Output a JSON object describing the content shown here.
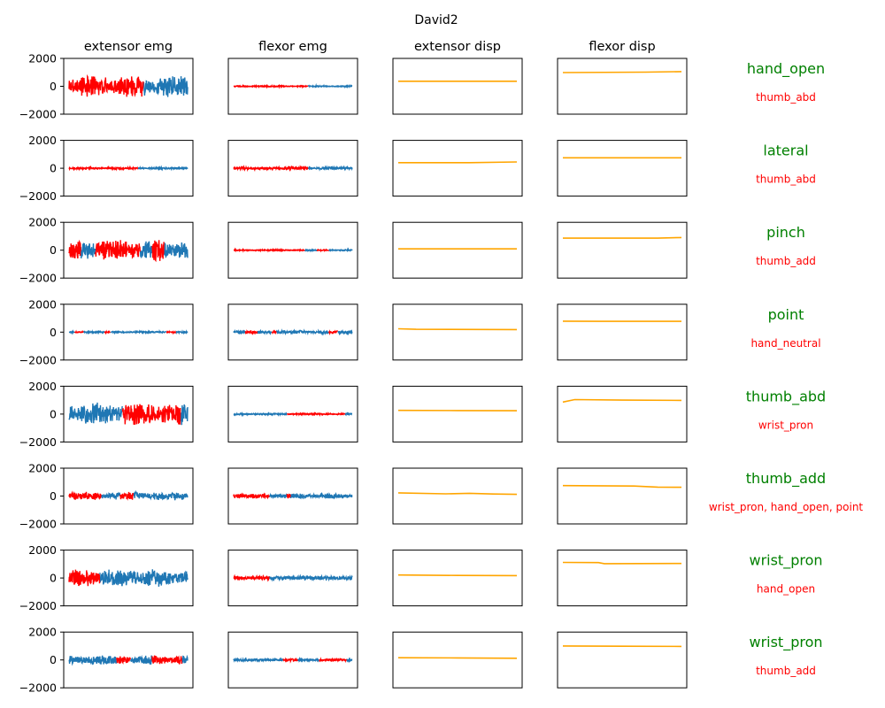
{
  "chart_data": {
    "type": "line",
    "title": "David2",
    "columns": [
      "extensor emg",
      "flexor emg",
      "extensor disp",
      "flexor disp"
    ],
    "emg_ylim": [
      -2000,
      2000
    ],
    "emg_yticks": [
      "2000",
      "0",
      "−2000"
    ],
    "disp_ylim": [
      -1000,
      2000
    ],
    "colors": {
      "emg": "#1f77b4",
      "emg_highlight": "#ff0000",
      "disp": "#ffa500",
      "gesture": "#008000",
      "confusion": "#ff0000"
    },
    "rows": [
      {
        "gesture": "hand_open",
        "confusion": "thumb_abd",
        "ext_emg": {
          "amp": 650,
          "noise": 350,
          "red": [
            [
              0.0,
              0.63
            ]
          ]
        },
        "flx_emg": {
          "amp": 40,
          "noise": 20,
          "red": [
            [
              0.0,
              0.63
            ]
          ]
        },
        "ext_disp": [
          [
            0,
            770
          ],
          [
            0.5,
            770
          ],
          [
            1,
            770
          ]
        ],
        "flx_disp": [
          [
            0,
            1240
          ],
          [
            0.7,
            1260
          ],
          [
            1,
            1290
          ]
        ]
      },
      {
        "gesture": "lateral",
        "confusion": "thumb_abd",
        "ext_emg": {
          "amp": 60,
          "noise": 40,
          "red": [
            [
              0.0,
              0.58
            ]
          ]
        },
        "flx_emg": {
          "amp": 90,
          "noise": 50,
          "red": [
            [
              0.0,
              0.63
            ]
          ]
        },
        "ext_disp": [
          [
            0,
            800
          ],
          [
            0.6,
            800
          ],
          [
            1,
            840
          ]
        ],
        "flx_disp": [
          [
            0,
            1060
          ],
          [
            0.5,
            1060
          ],
          [
            1,
            1060
          ]
        ]
      },
      {
        "gesture": "pinch",
        "confusion": "thumb_add",
        "ext_emg": {
          "amp": 650,
          "noise": 350,
          "red": [
            [
              0.0,
              0.1
            ],
            [
              0.22,
              0.6
            ],
            [
              0.7,
              0.8
            ]
          ]
        },
        "flx_emg": {
          "amp": 40,
          "noise": 20,
          "red": [
            [
              0.0,
              0.6
            ],
            [
              0.7,
              0.8
            ]
          ]
        },
        "ext_disp": [
          [
            0,
            570
          ],
          [
            0.5,
            570
          ],
          [
            1,
            570
          ]
        ],
        "flx_disp": [
          [
            0,
            1150
          ],
          [
            0.8,
            1150
          ],
          [
            1,
            1180
          ]
        ]
      },
      {
        "gesture": "point",
        "confusion": "hand_neutral",
        "ext_emg": {
          "amp": 50,
          "noise": 30,
          "red": [
            [
              0.05,
              0.12
            ],
            [
              0.3,
              0.35
            ],
            [
              0.82,
              0.9
            ]
          ]
        },
        "flx_emg": {
          "amp": 110,
          "noise": 60,
          "red": [
            [
              0.1,
              0.2
            ],
            [
              0.32,
              0.36
            ],
            [
              0.8,
              0.88
            ]
          ]
        },
        "ext_disp": [
          [
            0,
            680
          ],
          [
            0.15,
            650
          ],
          [
            1,
            640
          ]
        ],
        "flx_disp": [
          [
            0,
            1090
          ],
          [
            0.3,
            1080
          ],
          [
            1,
            1080
          ]
        ]
      },
      {
        "gesture": "thumb_abd",
        "confusion": "wrist_pron",
        "ext_emg": {
          "amp": 700,
          "noise": 350,
          "red": [
            [
              0.45,
              0.94
            ]
          ]
        },
        "flx_emg": {
          "amp": 50,
          "noise": 25,
          "red": [
            [
              0.45,
              0.94
            ]
          ]
        },
        "ext_disp": [
          [
            0,
            700
          ],
          [
            0.5,
            690
          ],
          [
            1,
            680
          ]
        ],
        "flx_disp": [
          [
            0,
            1150
          ],
          [
            0.1,
            1280
          ],
          [
            0.5,
            1250
          ],
          [
            1,
            1240
          ]
        ]
      },
      {
        "gesture": "thumb_add",
        "confusion": "wrist_pron, hand_open, point",
        "ext_emg": {
          "amp": 250,
          "noise": 180,
          "red": [
            [
              0.0,
              0.27
            ],
            [
              0.43,
              0.54
            ]
          ]
        },
        "flx_emg": {
          "amp": 150,
          "noise": 90,
          "red": [
            [
              0.0,
              0.3
            ],
            [
              0.45,
              0.48
            ]
          ]
        },
        "ext_disp": [
          [
            0,
            670
          ],
          [
            0.4,
            620
          ],
          [
            0.6,
            650
          ],
          [
            0.8,
            610
          ],
          [
            1,
            590
          ]
        ],
        "flx_disp": [
          [
            0,
            1060
          ],
          [
            0.6,
            1040
          ],
          [
            0.8,
            980
          ],
          [
            1,
            970
          ]
        ]
      },
      {
        "gesture": "wrist_pron",
        "confusion": "hand_open",
        "ext_emg": {
          "amp": 550,
          "noise": 300,
          "red": [
            [
              0.0,
              0.26
            ]
          ]
        },
        "flx_emg": {
          "amp": 140,
          "noise": 80,
          "red": [
            [
              0.0,
              0.3
            ]
          ]
        },
        "ext_disp": [
          [
            0,
            660
          ],
          [
            0.5,
            640
          ],
          [
            1,
            630
          ]
        ],
        "flx_disp": [
          [
            0,
            1340
          ],
          [
            0.3,
            1330
          ],
          [
            0.35,
            1270
          ],
          [
            1,
            1280
          ]
        ]
      },
      {
        "gesture": "wrist_pron",
        "confusion": "thumb_add",
        "ext_emg": {
          "amp": 300,
          "noise": 150,
          "red": [
            [
              0.4,
              0.52
            ],
            [
              0.7,
              0.95
            ]
          ]
        },
        "flx_emg": {
          "amp": 80,
          "noise": 40,
          "red": [
            [
              0.42,
              0.54
            ],
            [
              0.72,
              0.95
            ]
          ]
        },
        "ext_disp": [
          [
            0,
            620
          ],
          [
            0.5,
            610
          ],
          [
            1,
            590
          ]
        ],
        "flx_disp": [
          [
            0,
            1250
          ],
          [
            0.5,
            1240
          ],
          [
            1,
            1230
          ]
        ]
      }
    ]
  }
}
